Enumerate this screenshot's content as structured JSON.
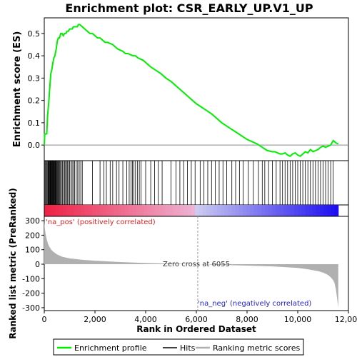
{
  "chart_data": {
    "type": "line",
    "title": "Enrichment plot: CSR_EARLY_UP.V1_UP",
    "xlabel": "Rank in Ordered Dataset",
    "ylabel_top": "Enrichment score (ES)",
    "ylabel_bottom": "Ranked list metric (PreRanked)",
    "xlim": [
      0,
      12000
    ],
    "x_ticks": [
      0,
      2000,
      4000,
      6000,
      8000,
      10000,
      12000
    ],
    "x_tick_labels": [
      "0",
      "2,000",
      "4,000",
      "6,000",
      "8,000",
      "10,000",
      "12,000"
    ],
    "es_ylim": [
      -0.07,
      0.57
    ],
    "es_ticks": [
      0.0,
      0.1,
      0.2,
      0.3,
      0.4,
      0.5
    ],
    "es_tick_labels": [
      "0.0",
      "0.1",
      "0.2",
      "0.3",
      "0.4",
      "0.5"
    ],
    "metric_ylim": [
      -320,
      330
    ],
    "metric_ticks": [
      300,
      200,
      100,
      0,
      -100,
      -200,
      -300
    ],
    "metric_tick_labels": [
      "300",
      "200",
      "100",
      "0",
      "-100",
      "-200",
      "-300"
    ],
    "enrichment_profile": {
      "name": "Enrichment profile",
      "color": "#00ee00",
      "x": [
        0,
        20,
        60,
        100,
        130,
        160,
        190,
        230,
        260,
        300,
        340,
        380,
        420,
        470,
        520,
        560,
        600,
        650,
        700,
        750,
        800,
        850,
        900,
        950,
        1000,
        1050,
        1100,
        1150,
        1200,
        1250,
        1300,
        1350,
        1400,
        1450,
        1500,
        1600,
        1700,
        1800,
        1900,
        2000,
        2100,
        2200,
        2300,
        2400,
        2500,
        2600,
        2700,
        2800,
        2900,
        3000,
        3100,
        3200,
        3300,
        3400,
        3500,
        3600,
        3700,
        3800,
        3900,
        4000,
        4200,
        4400,
        4600,
        4800,
        5000,
        5200,
        5400,
        5600,
        5800,
        6000,
        6200,
        6400,
        6600,
        6800,
        7000,
        7200,
        7400,
        7600,
        7800,
        8000,
        8200,
        8400,
        8600,
        8800,
        9000,
        9100,
        9200,
        9300,
        9400,
        9500,
        9600,
        9700,
        9800,
        9900,
        10000,
        10100,
        10200,
        10300,
        10400,
        10500,
        10600,
        10700,
        10800,
        10900,
        11000,
        11100,
        11200,
        11300,
        11400,
        11500,
        11600
      ],
      "y": [
        0.0,
        0.05,
        0.05,
        0.05,
        0.13,
        0.17,
        0.21,
        0.28,
        0.32,
        0.34,
        0.37,
        0.39,
        0.4,
        0.43,
        0.47,
        0.48,
        0.48,
        0.5,
        0.5,
        0.49,
        0.5,
        0.5,
        0.51,
        0.51,
        0.52,
        0.52,
        0.52,
        0.53,
        0.53,
        0.53,
        0.53,
        0.54,
        0.54,
        0.535,
        0.53,
        0.52,
        0.51,
        0.5,
        0.5,
        0.49,
        0.48,
        0.48,
        0.47,
        0.46,
        0.46,
        0.455,
        0.45,
        0.44,
        0.43,
        0.425,
        0.42,
        0.41,
        0.41,
        0.405,
        0.4,
        0.4,
        0.39,
        0.385,
        0.38,
        0.37,
        0.35,
        0.335,
        0.32,
        0.3,
        0.285,
        0.265,
        0.245,
        0.225,
        0.205,
        0.185,
        0.17,
        0.155,
        0.14,
        0.12,
        0.1,
        0.085,
        0.07,
        0.055,
        0.04,
        0.025,
        0.015,
        0.005,
        -0.01,
        -0.025,
        -0.03,
        -0.03,
        -0.035,
        -0.04,
        -0.04,
        -0.035,
        -0.045,
        -0.05,
        -0.04,
        -0.035,
        -0.045,
        -0.05,
        -0.04,
        -0.03,
        -0.035,
        -0.02,
        -0.03,
        -0.025,
        -0.02,
        -0.01,
        -0.005,
        -0.01,
        -0.005,
        0.0,
        0.02,
        0.01,
        0.005
      ]
    },
    "hits": {
      "name": "Hits",
      "positions": [
        30,
        60,
        90,
        120,
        150,
        170,
        190,
        210,
        230,
        250,
        270,
        290,
        310,
        330,
        350,
        370,
        390,
        410,
        430,
        450,
        470,
        490,
        520,
        550,
        580,
        610,
        640,
        680,
        720,
        760,
        800,
        840,
        880,
        920,
        960,
        1000,
        1050,
        1100,
        1150,
        1200,
        1260,
        1320,
        1380,
        1440,
        1500,
        1900,
        2200,
        2350,
        2450,
        2600,
        2700,
        2850,
        2950,
        3100,
        3250,
        3350,
        3420,
        3480,
        3540,
        3600,
        3680,
        3750,
        3820,
        4000,
        4200,
        4350,
        4500,
        4650,
        5000,
        5200,
        5350,
        5500,
        5650,
        5800,
        5950,
        6150,
        6300,
        6450,
        6600,
        6750,
        6900,
        7050,
        7200,
        7400,
        7550,
        7700,
        7850,
        8050,
        8250,
        8450,
        8600,
        8700,
        8850,
        9000,
        9150,
        9300,
        9400,
        9500,
        9600,
        9700,
        9800,
        9900,
        10000,
        10100,
        10200,
        10300,
        10400,
        10500,
        10600,
        10700,
        10800,
        10900,
        11000,
        11100,
        11200,
        11300,
        11400
      ]
    },
    "ranking_metric": {
      "name": "Ranking metric scores",
      "color": "#b0b0b0",
      "x": [
        0,
        20,
        50,
        100,
        150,
        200,
        300,
        400,
        500,
        700,
        1000,
        1500,
        2000,
        3000,
        4000,
        5000,
        6055,
        7000,
        8000,
        9000,
        9500,
        10000,
        10400,
        10800,
        11000,
        11200,
        11300,
        11400,
        11450,
        11500,
        11550,
        11600
      ],
      "y": [
        300,
        250,
        210,
        170,
        140,
        120,
        95,
        80,
        68,
        52,
        40,
        30,
        24,
        15,
        8,
        4,
        0,
        -5,
        -10,
        -15,
        -20,
        -26,
        -35,
        -48,
        -58,
        -75,
        -90,
        -110,
        -130,
        -170,
        -230,
        -300
      ]
    },
    "zero_cross_label": "Zero cross at 6055",
    "zero_cross_x": 6055,
    "pos_label": "'na_pos' (positively correlated)",
    "neg_label": "'na_neg' (negatively correlated)",
    "legend": {
      "placement": "bottom",
      "entries": [
        {
          "label": "Enrichment profile",
          "color": "#00ee00"
        },
        {
          "label": "Hits",
          "color": "#000000"
        },
        {
          "label": "Ranking metric scores",
          "color": "#b0b0b0"
        }
      ]
    },
    "colors": {
      "pos_label": "#dd2222",
      "neg_label": "#2222cc",
      "zero_line": "#888888",
      "bar_pos": "#ee2244",
      "bar_neg": "#1a0ad6"
    }
  }
}
